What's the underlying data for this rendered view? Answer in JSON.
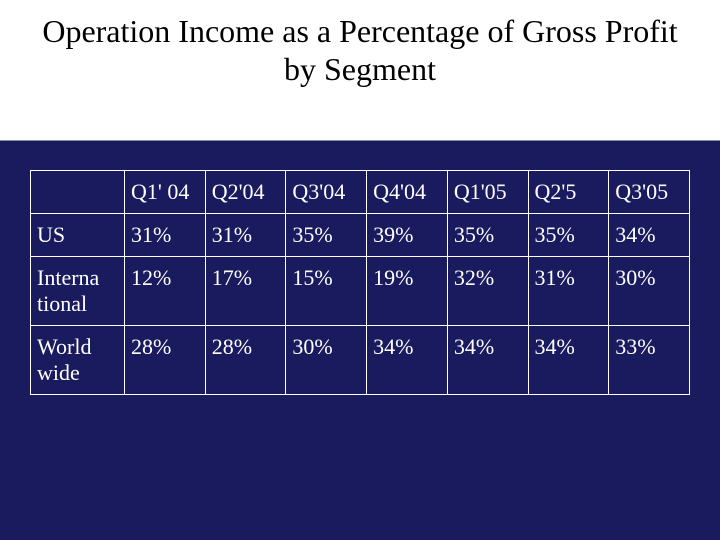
{
  "title": "Operation Income as a Percentage of Gross Profit by Segment",
  "table": {
    "type": "table",
    "text_color": "#ffffff",
    "border_color": "#ffffff",
    "cell_fontsize": 22,
    "columns": [
      "",
      "Q1' 04",
      "Q2'04",
      "Q3'04",
      "Q4'04",
      "Q1'05",
      "Q2'5",
      "Q3'05"
    ],
    "rows": [
      [
        "US",
        "31%",
        "31%",
        "35%",
        "39%",
        "35%",
        "35%",
        "34%"
      ],
      [
        "Interna tional",
        "12%",
        "17%",
        "15%",
        "19%",
        "32%",
        "31%",
        "30%"
      ],
      [
        "World wide",
        "28%",
        "28%",
        "30%",
        "34%",
        "34%",
        "34%",
        "33%"
      ]
    ]
  },
  "style": {
    "title_color": "#000000",
    "title_fontsize": 32,
    "title_fontfamily": "Georgia",
    "title_background": "#ffffff",
    "body_background": "#1a1a5e",
    "slide_width": 720,
    "slide_height": 540
  }
}
